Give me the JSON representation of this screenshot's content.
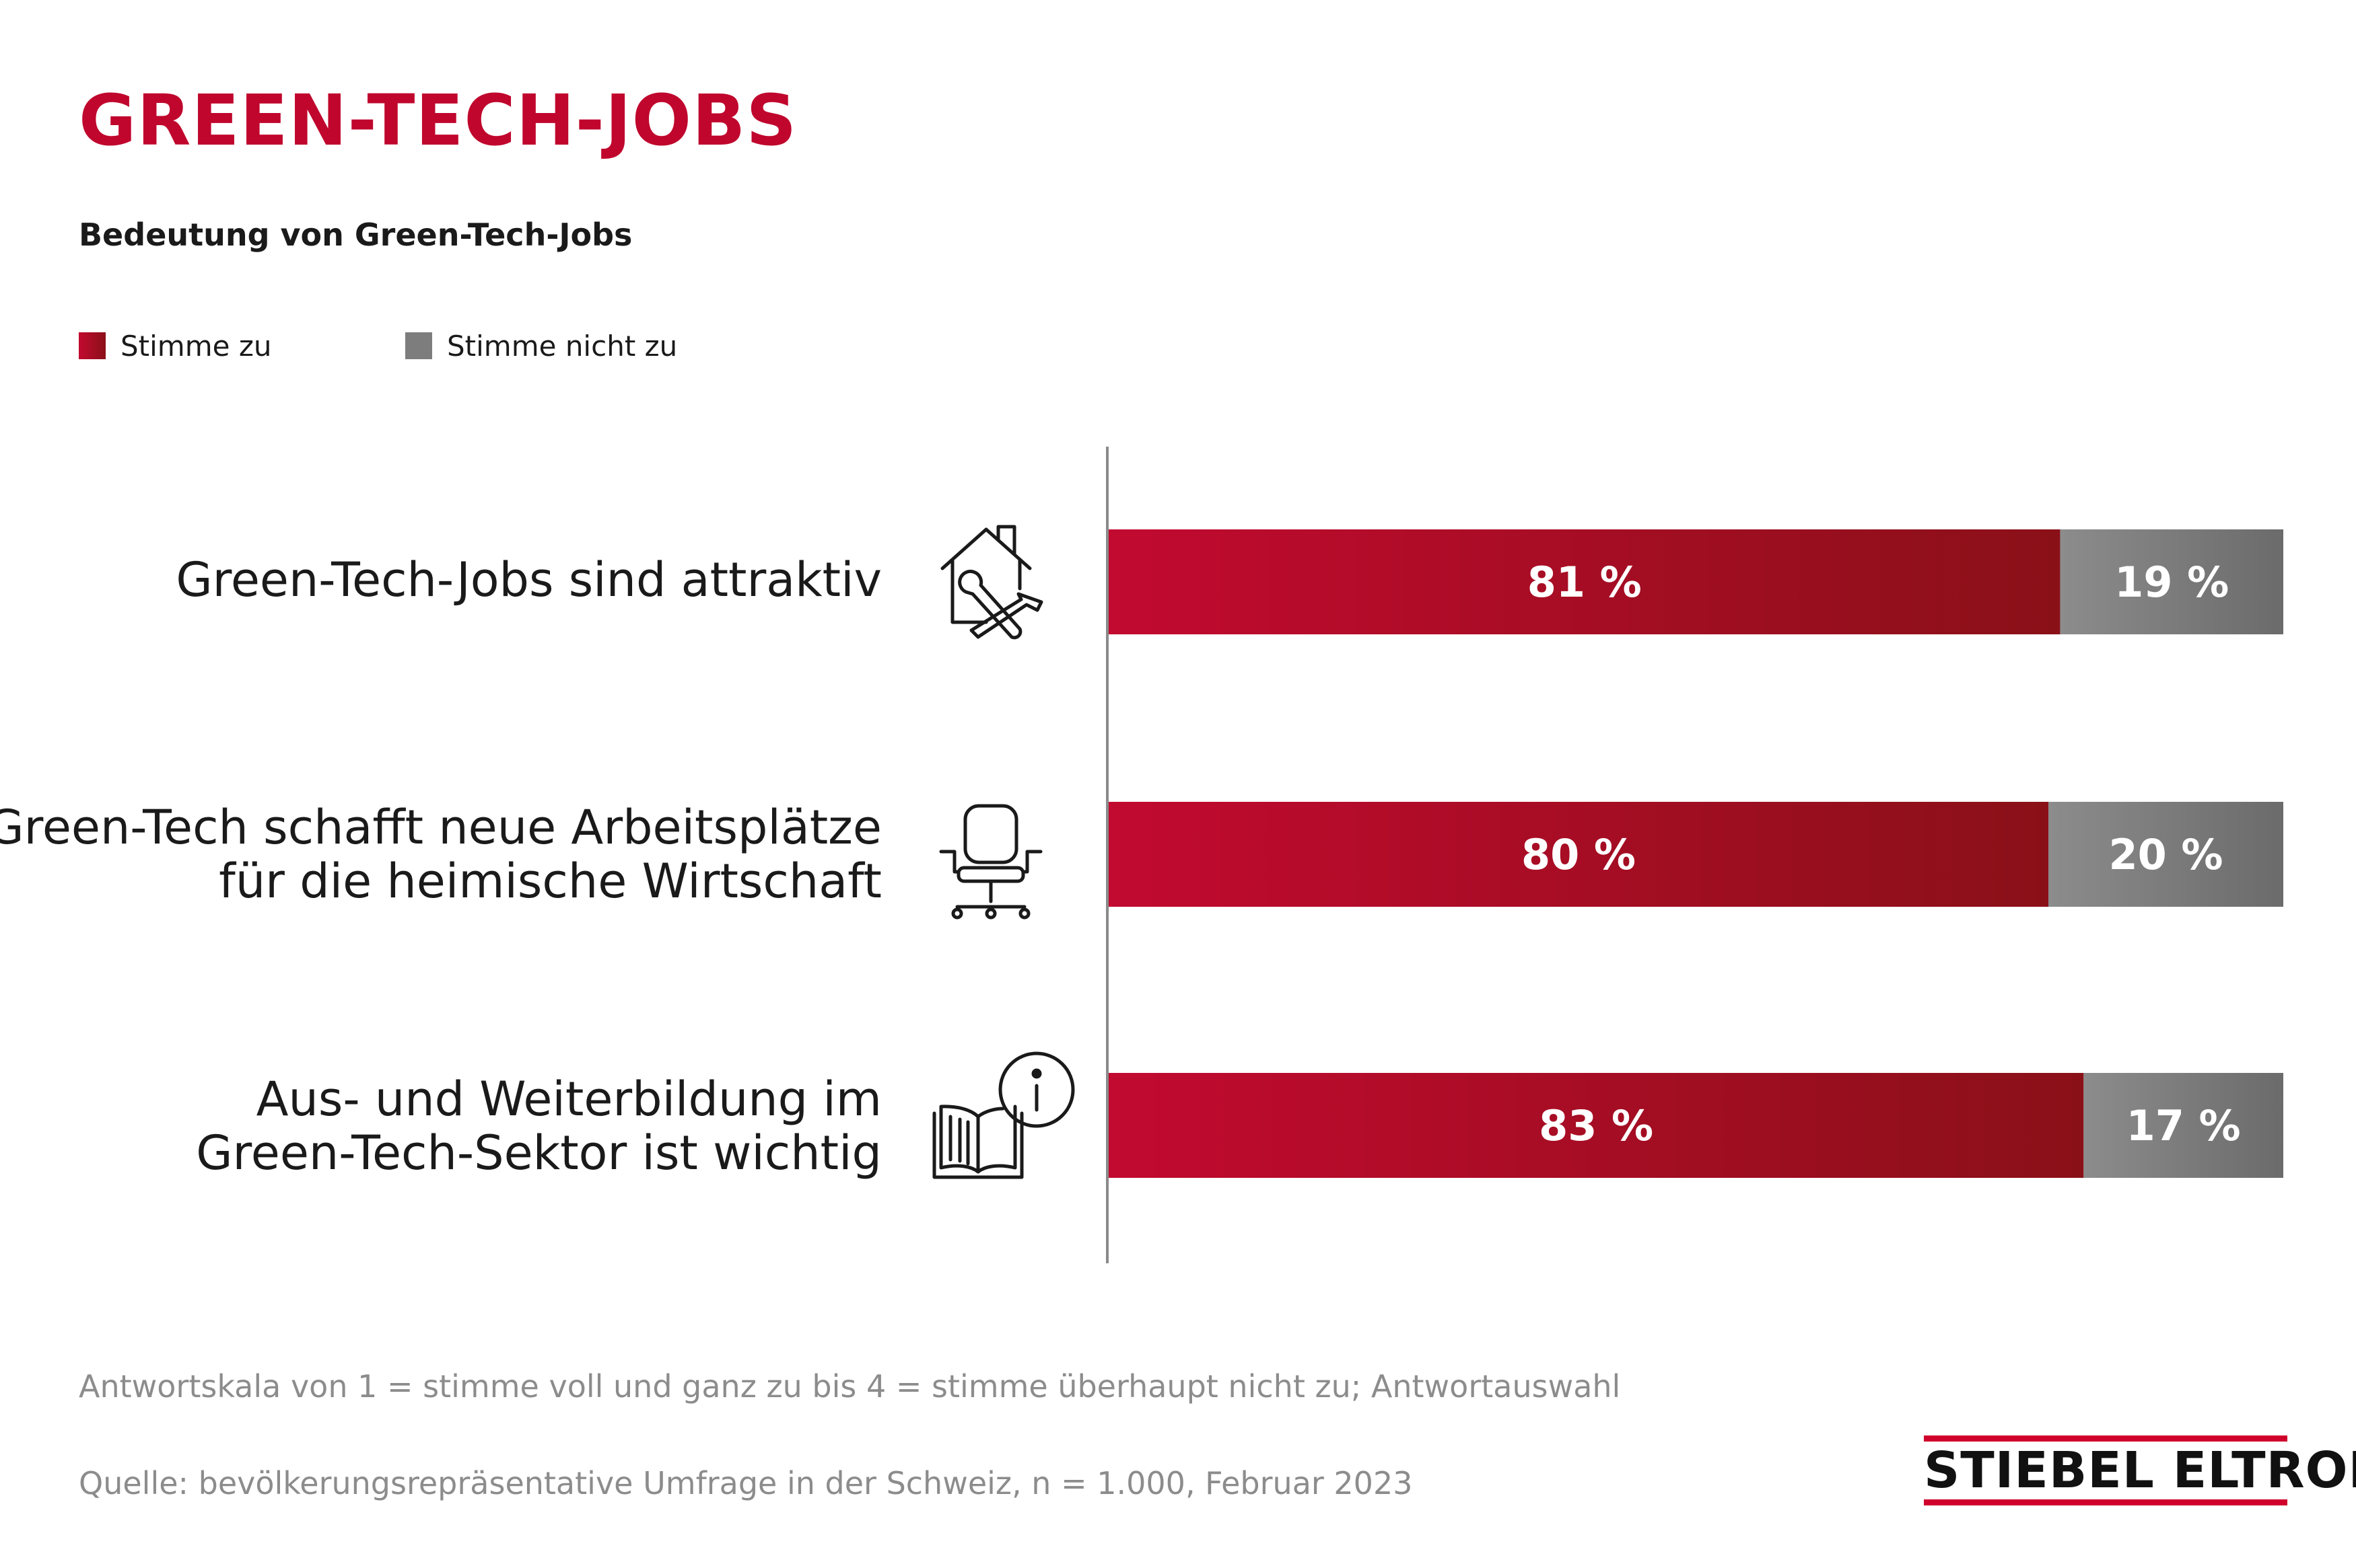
{
  "chart_data": {
    "type": "bar",
    "stacked": true,
    "orientation": "horizontal",
    "title": "GREEN-TECH-JOBS",
    "subtitle": "Bedeutung von Green-Tech-Jobs",
    "categories": [
      "Green-Tech-Jobs sind attraktiv",
      "Green-Tech schafft neue Arbeitsplätze für die heimische Wirtschaft",
      "Aus- und Weiterbildung im Green-Tech-Sektor ist wichtig"
    ],
    "category_lines": [
      [
        "Green-Tech-Jobs sind attraktiv"
      ],
      [
        "Green-Tech schafft neue Arbeitsplätze",
        "für die heimische Wirtschaft"
      ],
      [
        "Aus- und Weiterbildung im",
        "Green-Tech-Sektor ist wichtig"
      ]
    ],
    "series": [
      {
        "name": "Stimme zu",
        "values": [
          81,
          80,
          83
        ],
        "labels": [
          "81 %",
          "80 %",
          "83 %"
        ],
        "color": "#b00d2e"
      },
      {
        "name": "Stimme nicht zu",
        "values": [
          19,
          20,
          17
        ],
        "labels": [
          "19 %",
          "20 %",
          "17 %"
        ],
        "color": "#7d7d7d"
      }
    ],
    "xlim": [
      0,
      100
    ],
    "legend": "top-left",
    "grid": false
  },
  "legend": {
    "agree": "Stimme zu",
    "disagree": "Stimme nicht zu"
  },
  "icons": [
    "house-tools-icon",
    "office-chair-icon",
    "book-info-icon"
  ],
  "footnotes": {
    "scale": "Antwortskala von 1 = stimme voll und ganz zu bis 4 = stimme überhaupt nicht zu; Antwortauswahl",
    "source": "Quelle: bevölkerungsrepräsentative Umfrage in der Schweiz, n = 1.000, Februar 2023"
  },
  "logo": {
    "text": "STIEBEL ELTRON"
  },
  "colors": {
    "accent": "#c0062d",
    "agree_start": "#c20a30",
    "agree_end": "#8a1018",
    "disagree_start": "#8c8c8c",
    "disagree_end": "#6b6b6b"
  }
}
